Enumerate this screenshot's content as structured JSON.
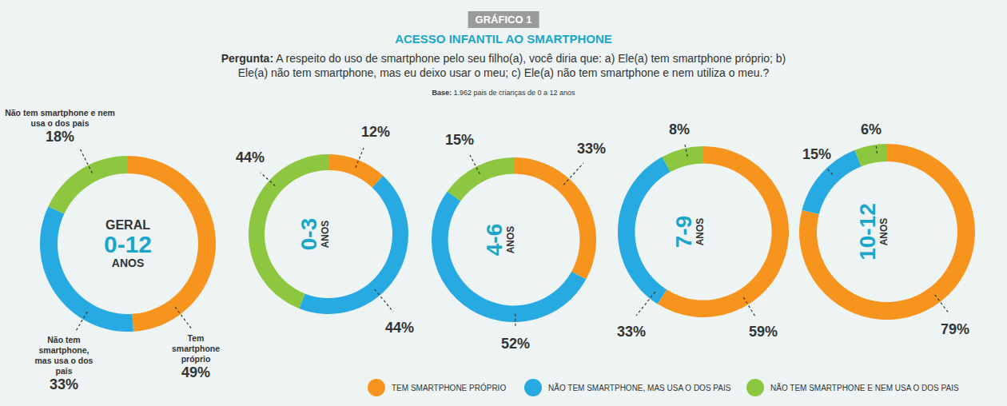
{
  "header": {
    "badge": "GRÁFICO 1",
    "title": "ACESSO INFANTIL AO SMARTPHONE",
    "question_label": "Pergunta:",
    "question": "A respeito do uso de smartphone pelo seu filho(a), você diria que: a) Ele(a) tem smartphone próprio; b) Ele(a) não tem smartphone, mas eu deixo usar o meu; c) Ele(a) não tem smartphone e nem utiliza o meu.?",
    "base_label": "Base:",
    "base": "1.962 pais de crianças de 0 a 12 anos"
  },
  "series": [
    {
      "name": "TEM SMARTPHONE PRÓPRIO",
      "color": "#f7941d"
    },
    {
      "name": "NÃO TEM SMARTPHONE, MAS USA O DOS PAIS",
      "color": "#27aae1"
    },
    {
      "name": "NÃO TEM SMARTPHONE E NEM USA O DOS PAIS",
      "color": "#8dc63f"
    }
  ],
  "chart_data": [
    {
      "type": "pie",
      "center_text": [
        "GERAL",
        "0-12",
        "ANOS"
      ],
      "slice_labels": [
        "Tem smartphone próprio",
        "Não tem smartphone, mas usa o dos pais",
        "Não tem smartphone e nem usa o dos pais"
      ],
      "values": [
        49,
        33,
        18
      ],
      "value_labels": [
        "49%",
        "33%",
        "18%"
      ],
      "data_labels": true
    },
    {
      "type": "pie",
      "center_text": [
        "0-3",
        "ANOS"
      ],
      "values": [
        12,
        44,
        44
      ],
      "value_labels": [
        "12%",
        "44%",
        "44%"
      ],
      "data_labels": true
    },
    {
      "type": "pie",
      "center_text": [
        "4-6",
        "ANOS"
      ],
      "values": [
        33,
        52,
        15
      ],
      "value_labels": [
        "33%",
        "52%",
        "15%"
      ],
      "data_labels": true
    },
    {
      "type": "pie",
      "center_text": [
        "7-9",
        "ANOS"
      ],
      "values": [
        59,
        33,
        8
      ],
      "value_labels": [
        "59%",
        "33%",
        "8%"
      ],
      "data_labels": true
    },
    {
      "type": "pie",
      "center_text": [
        "10-12",
        "ANOS"
      ],
      "values": [
        79,
        15,
        6
      ],
      "value_labels": [
        "79%",
        "15%",
        "6%"
      ],
      "data_labels": true
    }
  ]
}
